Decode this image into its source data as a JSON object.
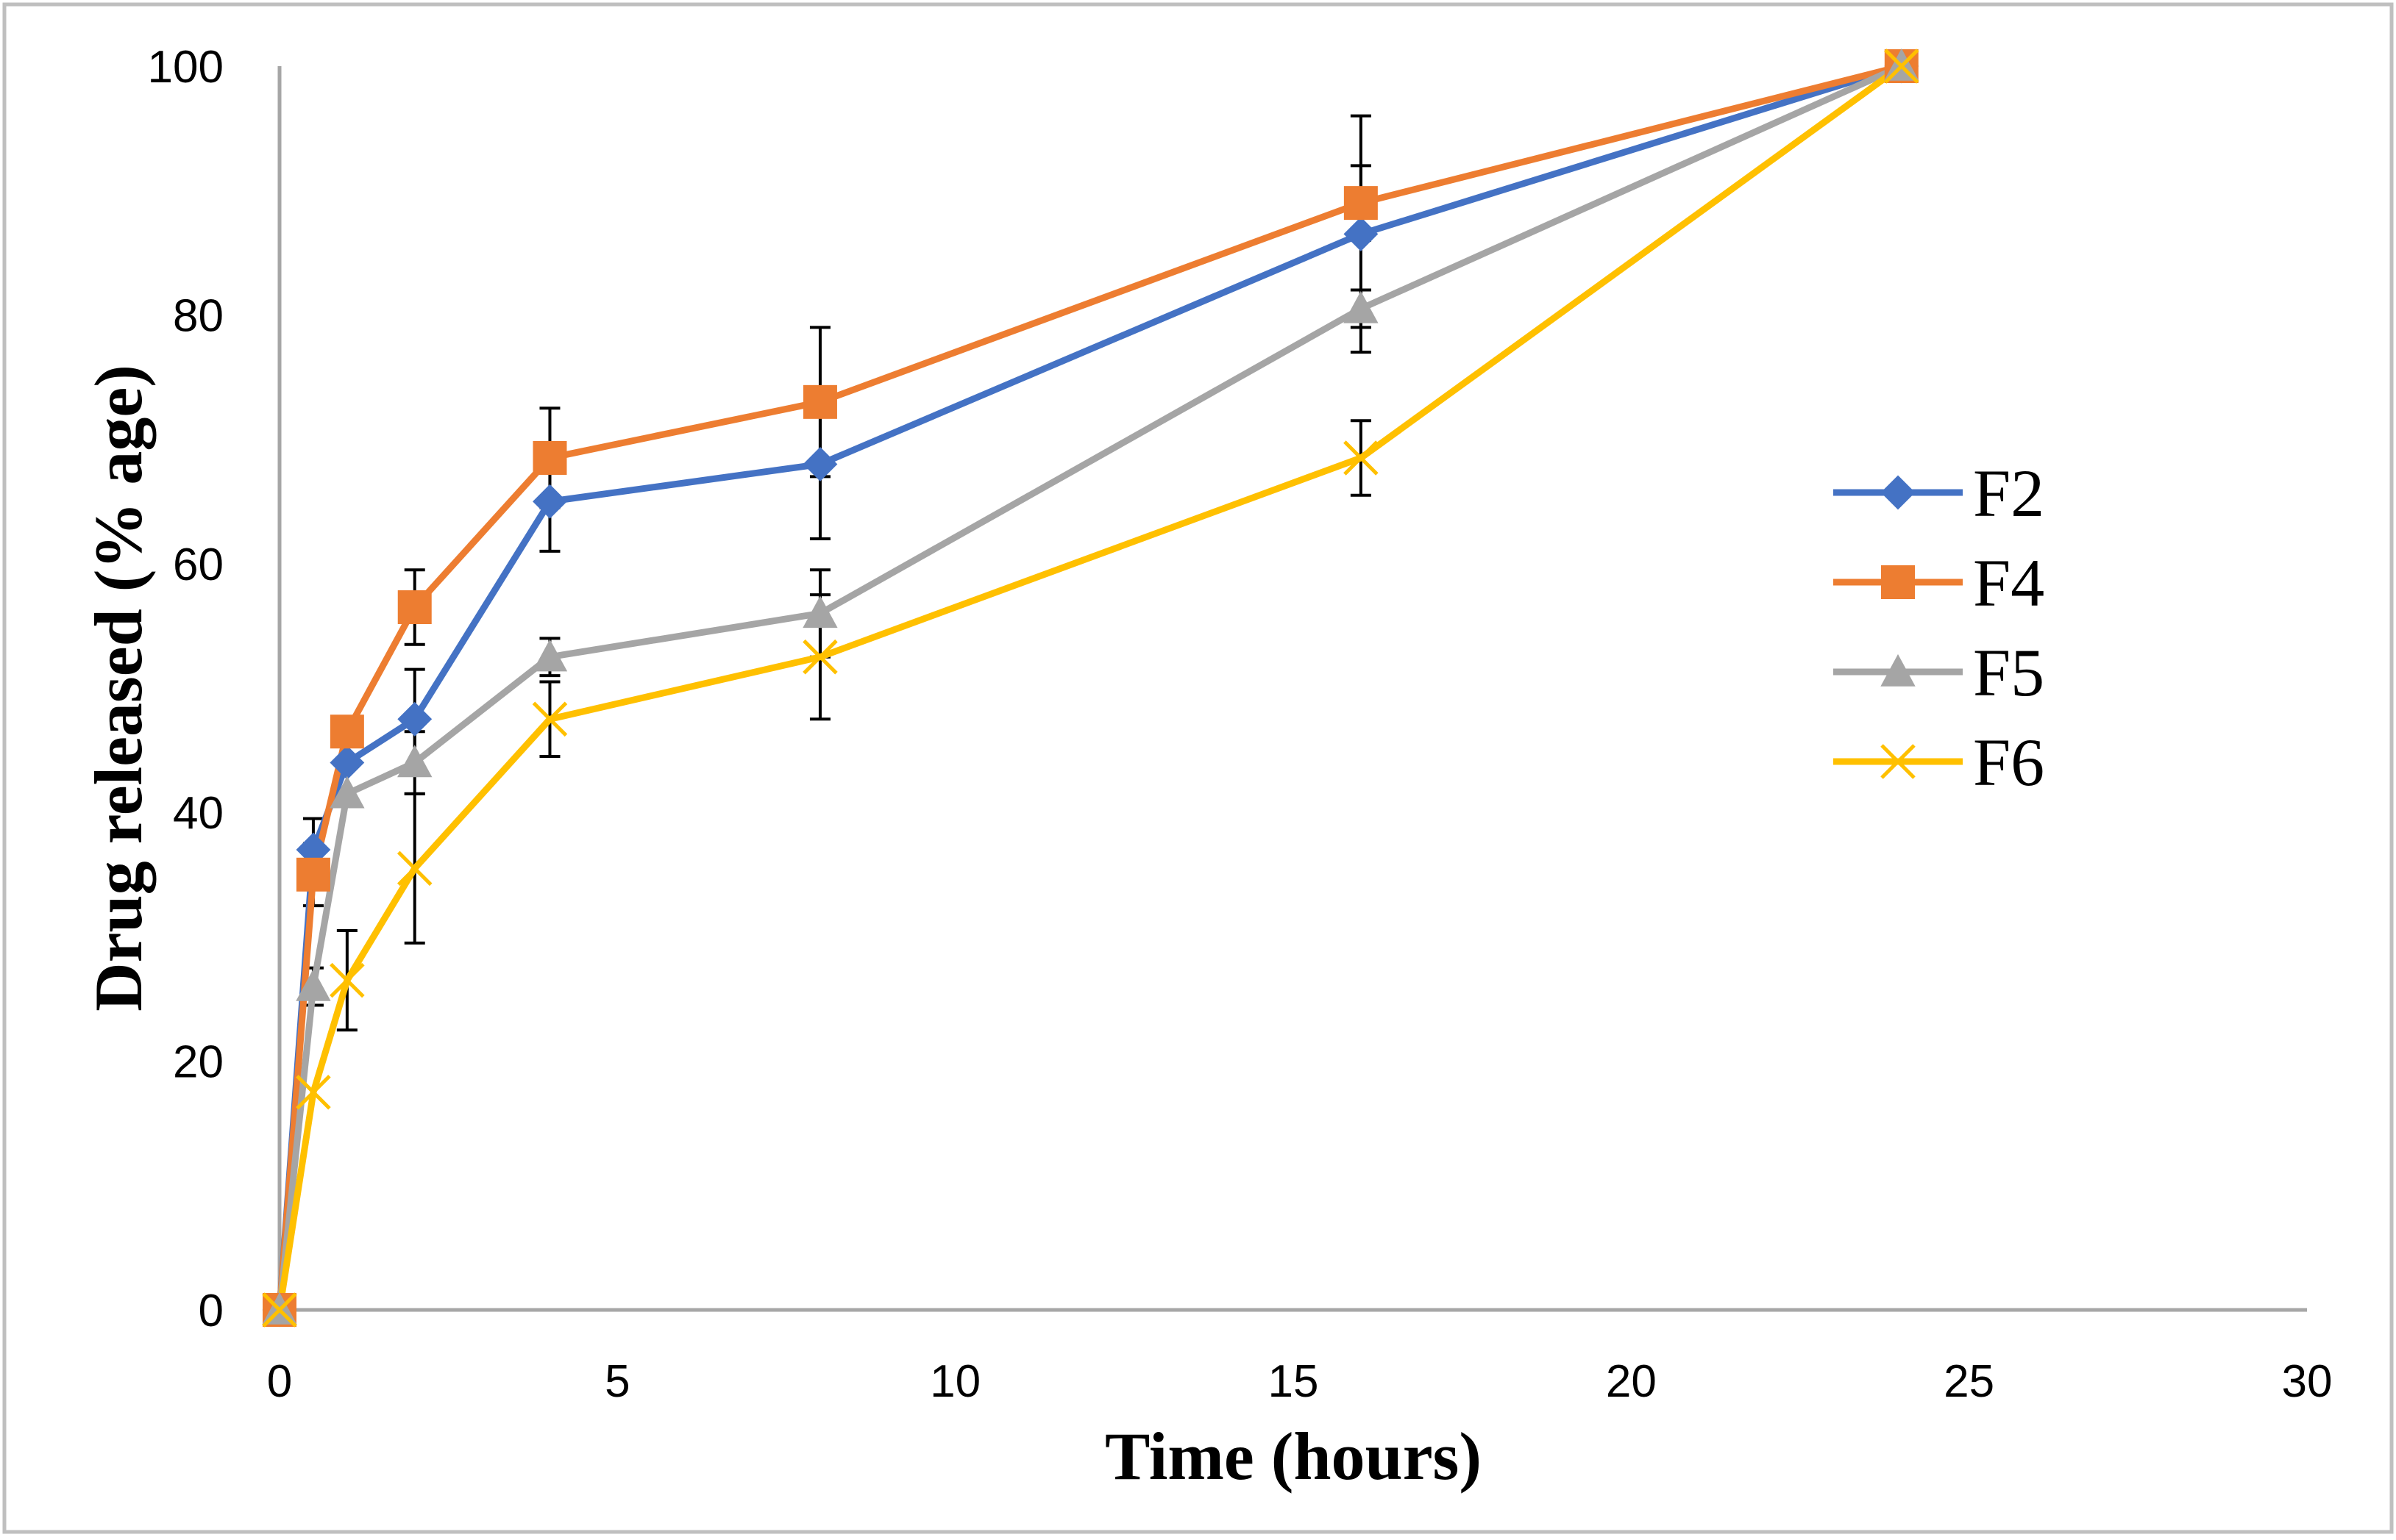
{
  "chart_data": {
    "type": "line",
    "title": "",
    "xlabel": "Time (hours)",
    "ylabel": "Drug released (% age)",
    "xlim": [
      0,
      30
    ],
    "ylim": [
      0,
      100
    ],
    "x_ticks": [
      0,
      5,
      10,
      15,
      20,
      25,
      30
    ],
    "y_ticks": [
      0,
      20,
      40,
      60,
      80,
      100
    ],
    "grid": false,
    "legend_position": "right",
    "series": [
      {
        "name": "F2",
        "color": "#4472C4",
        "marker": "diamond",
        "x": [
          0,
          0.5,
          1,
          2,
          4,
          8,
          16,
          24
        ],
        "y": [
          0,
          37,
          44,
          47.5,
          65,
          68,
          86.5,
          100
        ],
        "err": [
          0,
          2.5,
          0,
          4,
          4,
          6,
          9.5,
          0
        ]
      },
      {
        "name": "F4",
        "color": "#ED7D31",
        "marker": "square",
        "x": [
          0,
          0.5,
          1,
          2,
          4,
          8,
          16,
          24
        ],
        "y": [
          0,
          35,
          46.5,
          56.5,
          68.5,
          73,
          89,
          100
        ],
        "err": [
          0,
          2.5,
          0,
          3,
          4,
          6,
          3,
          0
        ]
      },
      {
        "name": "F5",
        "color": "#A5A5A5",
        "marker": "triangle",
        "x": [
          0,
          0.5,
          1,
          2,
          4,
          8,
          16,
          24
        ],
        "y": [
          0,
          26,
          41.5,
          44,
          52.5,
          56,
          80.5,
          100
        ],
        "err": [
          0,
          1.5,
          0,
          2.5,
          1.5,
          3.5,
          1.5,
          0
        ]
      },
      {
        "name": "F6",
        "color": "#FFC000",
        "marker": "x",
        "x": [
          0,
          0.5,
          1,
          2,
          4,
          8,
          16,
          24
        ],
        "y": [
          0,
          17.5,
          26.5,
          35.5,
          47.5,
          52.5,
          68.5,
          100
        ],
        "err": [
          0,
          0,
          4,
          6,
          3,
          5,
          3,
          0
        ]
      }
    ]
  }
}
